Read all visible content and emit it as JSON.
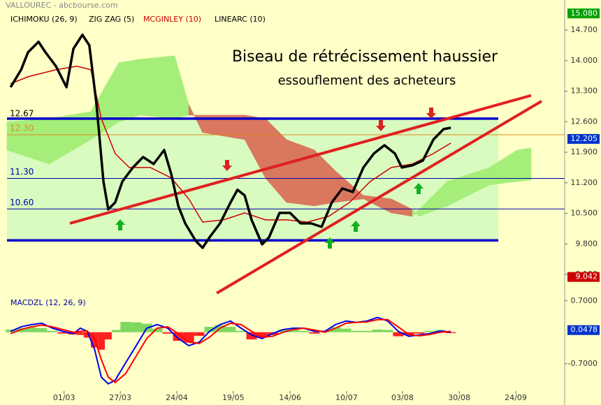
{
  "chart_data": [
    {
      "type": "line",
      "source": "VALLOUREC - abcbourse.com",
      "title": "Biseau de rétrécissement haussier",
      "subtitle": "essouflement des acheteurs",
      "xlim": [
        0,
        185
      ],
      "xticks": [
        {
          "value": 19,
          "label": "01/03"
        },
        {
          "value": 37.7,
          "label": "27/03"
        },
        {
          "value": 56.5,
          "label": "24/04"
        },
        {
          "value": 75.3,
          "label": "19/05"
        },
        {
          "value": 94.2,
          "label": "14/06"
        },
        {
          "value": 113,
          "label": "10/07"
        },
        {
          "value": 131.6,
          "label": "03/08"
        },
        {
          "value": 150.5,
          "label": "30/08"
        },
        {
          "value": 169.3,
          "label": "24/09"
        }
      ],
      "ylim": [
        8.668,
        15.116
      ],
      "yticks": [
        {
          "value": 14.7,
          "label": "14.700"
        },
        {
          "value": 14,
          "label": "14.000"
        },
        {
          "value": 13.3,
          "label": "13.300"
        },
        {
          "value": 12.6,
          "label": "12.600"
        },
        {
          "value": 11.9,
          "label": "11.900"
        },
        {
          "value": 11.2,
          "label": "11.200"
        },
        {
          "value": 10.5,
          "label": "10.500"
        },
        {
          "value": 9.8,
          "label": "9.800"
        },
        {
          "value": 9.1,
          "label": "9.100"
        }
      ],
      "range_box": {
        "top": {
          "value": 12.67,
          "label": "12.67"
        },
        "bottom": 9.88,
        "x_end": 163.5,
        "fill": "#d9fbbf",
        "edge_color": "#0000cc",
        "label_color": "#000000"
      },
      "levels": [
        {
          "value": 12.3,
          "label": "12.30",
          "color": "#e08a20"
        },
        {
          "value": 11.3,
          "label": "11.30",
          "color": "#0000aa"
        },
        {
          "value": 10.6,
          "label": "10.60",
          "color": "#0000aa"
        }
      ],
      "series": [
        {
          "name": "ICHIMOKU (26, 9)",
          "color": "#000000",
          "up_color": "#a6ee7a",
          "down_color": "#d9785f",
          "x": [
            0,
            14.0,
            27.9,
            37.2,
            44.2,
            55.8,
            60.5,
            65.1,
            79.1,
            86.0,
            93.0,
            102.3,
            109.3,
            118.6,
            127.9,
            134.9,
            137.2,
            146.5,
            160.5,
            169.8,
            174.4
          ],
          "span_a": [
            12.59,
            12.67,
            12.83,
            13.95,
            14.03,
            14.11,
            12.99,
            12.35,
            12.19,
            11.31,
            10.75,
            10.67,
            10.75,
            10.83,
            10.51,
            10.43,
            10.59,
            11.23,
            11.55,
            11.95,
            12.0
          ],
          "span_b": [
            11.95,
            11.63,
            12.19,
            12.59,
            12.75,
            12.67,
            12.75,
            12.75,
            12.75,
            12.67,
            12.19,
            11.95,
            11.47,
            10.91,
            10.83,
            10.59,
            10.43,
            10.67,
            11.15,
            11.23,
            11.26
          ]
        },
        {
          "name": "ZIG ZAG (5)",
          "color": "#000000",
          "x": [
            1.2,
            4.7,
            7.0,
            10.5,
            12.8,
            16.3,
            19.8,
            22.1,
            25.1,
            27.4,
            29.8,
            32.1,
            33.7,
            36.0,
            38.4,
            41.9,
            45.3,
            48.8,
            52.3,
            54.7,
            57.0,
            59.3,
            62.8,
            65.1,
            67.4,
            70.9,
            74.4,
            76.7,
            79.1,
            81.4,
            84.9,
            87.2,
            90.7,
            94.2,
            97.7,
            101.2,
            104.7,
            108.1,
            111.6,
            115.1,
            118.6,
            122.1,
            125.6,
            129.1,
            131.4,
            134.9,
            138.4,
            141.9,
            145.3,
            147.7
          ],
          "values": [
            13.39,
            13.79,
            14.19,
            14.43,
            14.19,
            13.87,
            13.39,
            14.27,
            14.59,
            14.35,
            12.99,
            11.23,
            10.59,
            10.75,
            11.23,
            11.55,
            11.79,
            11.63,
            11.95,
            11.39,
            10.67,
            10.27,
            9.87,
            9.71,
            9.95,
            10.27,
            10.75,
            11.04,
            10.91,
            10.35,
            9.79,
            9.95,
            10.51,
            10.51,
            10.27,
            10.27,
            10.19,
            10.75,
            11.07,
            10.99,
            11.55,
            11.87,
            12.06,
            11.87,
            11.55,
            11.6,
            11.71,
            12.19,
            12.43,
            12.46
          ]
        },
        {
          "name": "MCGINLEY (10)",
          "color": "#cc0000",
          "x": [
            1.2,
            7.0,
            16.3,
            23.3,
            27.9,
            31.4,
            36.0,
            40.7,
            47.7,
            54.7,
            60.5,
            65.1,
            72.1,
            79.1,
            86.0,
            93.0,
            100.0,
            107.0,
            114.0,
            120.9,
            127.9,
            134.9,
            141.9,
            147.7
          ],
          "values": [
            13.47,
            13.63,
            13.79,
            13.87,
            13.79,
            12.67,
            11.87,
            11.55,
            11.55,
            11.31,
            10.83,
            10.3,
            10.35,
            10.51,
            10.35,
            10.35,
            10.3,
            10.43,
            10.75,
            11.23,
            11.55,
            11.63,
            11.87,
            12.11
          ]
        },
        {
          "name": "LINEARC (10)",
          "color": "#000000",
          "line_color": "#e02020",
          "lines": [
            {
              "x": [
                20.9,
                174.4
              ],
              "values": [
                10.27,
                13.2
              ]
            },
            {
              "x": [
                69.8,
                177.9
              ],
              "values": [
                8.67,
                13.07
              ]
            }
          ]
        }
      ],
      "price_tags": [
        {
          "value": 15.08,
          "label": "15.080",
          "color": "#00a000"
        },
        {
          "value": 12.205,
          "label": "12.205",
          "color": "#0033cc"
        },
        {
          "value": 9.042,
          "label": "9.042",
          "color": "#cc0000"
        }
      ]
    },
    {
      "type": "line",
      "title": "MACDZL (12, 26, 9)",
      "ylim": [
        -1.31,
        0.79
      ],
      "yticks": [
        {
          "value": 0.7,
          "label": "0.7000"
        },
        {
          "value": -0.7,
          "label": "-0.7000"
        }
      ],
      "x": [
        1.2,
        4.7,
        8.1,
        11.6,
        15.1,
        18.6,
        22.1,
        24.4,
        26.7,
        29.1,
        31.4,
        33.7,
        36.0,
        39.5,
        43.0,
        46.5,
        50.0,
        53.5,
        57.0,
        60.5,
        64.0,
        67.4,
        70.9,
        74.4,
        77.9,
        81.4,
        84.9,
        88.4,
        91.9,
        95.3,
        98.8,
        102.3,
        105.8,
        109.3,
        112.8,
        116.3,
        119.8,
        123.3,
        126.7,
        130.2,
        133.7,
        137.2,
        140.7,
        144.2,
        147.7
      ],
      "series": [
        {
          "color": "#0000ee",
          "values": [
            0.02,
            0.12,
            0.17,
            0.2,
            0.09,
            0.02,
            -0.03,
            0.09,
            0.02,
            -0.37,
            -1.0,
            -1.15,
            -1.07,
            -0.68,
            -0.3,
            0.09,
            0.17,
            0.09,
            -0.14,
            -0.3,
            -0.22,
            0.02,
            0.17,
            0.25,
            0.09,
            -0.06,
            -0.14,
            -0.03,
            0.06,
            0.09,
            0.09,
            0.02,
            0.02,
            0.17,
            0.25,
            0.22,
            0.25,
            0.33,
            0.25,
            0.02,
            -0.09,
            -0.06,
            -0.03,
            0.03,
            0.0
          ]
        },
        {
          "color": "#ff0000",
          "values": [
            -0.03,
            0.06,
            0.12,
            0.16,
            0.12,
            0.06,
            0.0,
            0.02,
            0.03,
            -0.14,
            -0.61,
            -1.0,
            -1.12,
            -0.92,
            -0.53,
            -0.14,
            0.09,
            0.12,
            -0.03,
            -0.22,
            -0.25,
            -0.11,
            0.09,
            0.2,
            0.17,
            0.02,
            -0.11,
            -0.09,
            0.0,
            0.06,
            0.09,
            0.05,
            0.0,
            0.09,
            0.2,
            0.22,
            0.23,
            0.28,
            0.28,
            0.12,
            -0.05,
            -0.08,
            -0.05,
            0.0,
            0.02
          ]
        }
      ],
      "histogram": {
        "up_color": "#7ed860",
        "down_color": "#ff2020",
        "values": [
          0.06,
          0.09,
          0.11,
          0.09,
          0.03,
          -0.03,
          -0.05,
          -0.06,
          -0.12,
          -0.34,
          -0.39,
          -0.16,
          0.05,
          0.23,
          0.22,
          0.19,
          0.08,
          -0.03,
          -0.19,
          -0.23,
          -0.08,
          0.12,
          0.16,
          0.12,
          0.03,
          -0.16,
          -0.12,
          -0.06,
          0.06,
          0.06,
          0.03,
          -0.03,
          0.02,
          0.11,
          0.08,
          0.03,
          0.03,
          0.06,
          0.05,
          -0.09,
          -0.06,
          -0.03,
          0.03,
          0.05,
          -0.02
        ]
      },
      "price_tags": [
        {
          "value": 0.0478,
          "label": "0.0478",
          "color": "#0033cc"
        }
      ]
    }
  ]
}
